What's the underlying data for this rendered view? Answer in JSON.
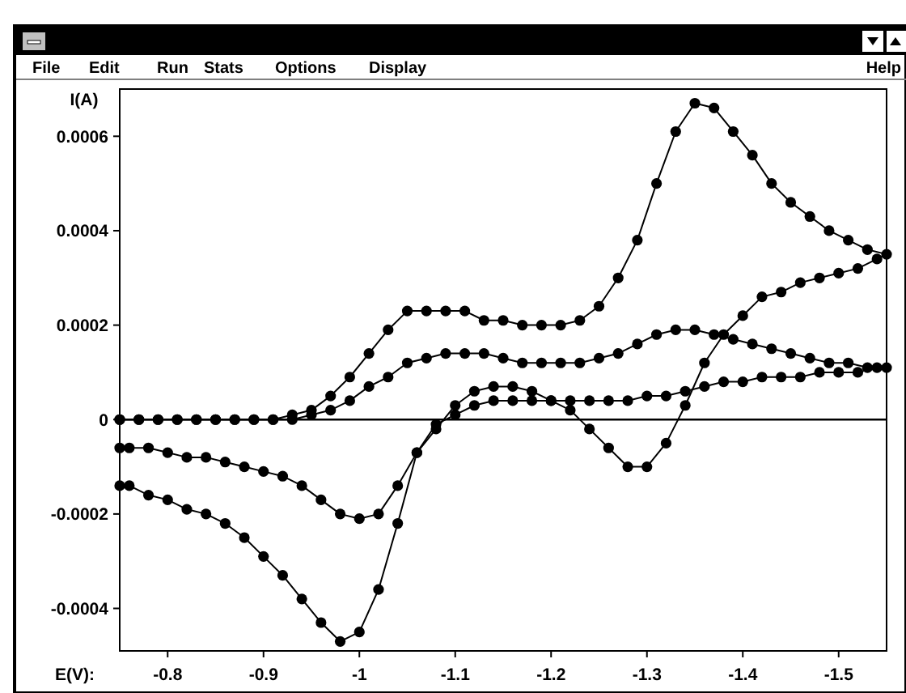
{
  "chart_data": {
    "type": "line",
    "xlabel": "E(V):",
    "ylabel": "I(A)",
    "annotations": [
      "File",
      "Edit",
      "Run",
      "Stats",
      "Options",
      "Display",
      "Help"
    ],
    "xlim": [
      -0.75,
      -1.55
    ],
    "xticks": [
      -0.8,
      -0.9,
      -1,
      -1.1,
      -1.2,
      -1.3,
      -1.4,
      -1.5
    ],
    "ylim": [
      -0.00049,
      0.0007
    ],
    "yticks": [
      -0.0004,
      -0.0002,
      0,
      0.0002,
      0.0004,
      0.0006
    ],
    "grid": false,
    "marker": "circle",
    "line_style": "solid",
    "ref_lines": [
      {
        "axis": "y",
        "value": 0,
        "color": "#000000"
      }
    ],
    "series": [
      {
        "color": "#000000",
        "x": [
          -0.75,
          -0.77,
          -0.79,
          -0.81,
          -0.83,
          -0.85,
          -0.87,
          -0.89,
          -0.91,
          -0.93,
          -0.95,
          -0.97,
          -0.99,
          -1.01,
          -1.03,
          -1.05,
          -1.07,
          -1.09,
          -1.11,
          -1.13,
          -1.15,
          -1.17,
          -1.19,
          -1.21,
          -1.23,
          -1.25,
          -1.27,
          -1.29,
          -1.31,
          -1.33,
          -1.35,
          -1.37,
          -1.39,
          -1.41,
          -1.43,
          -1.45,
          -1.47,
          -1.49,
          -1.51,
          -1.53,
          -1.55,
          -1.54,
          -1.52,
          -1.5,
          -1.48,
          -1.46,
          -1.44,
          -1.42,
          -1.4,
          -1.38,
          -1.36,
          -1.34,
          -1.32,
          -1.3,
          -1.28,
          -1.26,
          -1.24,
          -1.22,
          -1.2,
          -1.18,
          -1.16,
          -1.14,
          -1.12,
          -1.1,
          -1.08,
          -1.06,
          -1.04,
          -1.02,
          -1,
          -0.98,
          -0.96,
          -0.94,
          -0.92,
          -0.9,
          -0.88,
          -0.86,
          -0.84,
          -0.82,
          -0.8,
          -0.78,
          -0.76,
          -0.75
        ],
        "values": [
          0,
          0,
          0,
          0,
          0,
          0,
          0,
          0,
          0,
          1e-05,
          2e-05,
          5e-05,
          9e-05,
          0.00014,
          0.00019,
          0.00023,
          0.00023,
          0.00023,
          0.00023,
          0.00021,
          0.00021,
          0.0002,
          0.0002,
          0.0002,
          0.00021,
          0.00024,
          0.0003,
          0.00038,
          0.0005,
          0.00061,
          0.00067,
          0.00066,
          0.00061,
          0.00056,
          0.0005,
          0.00046,
          0.00043,
          0.0004,
          0.00038,
          0.00036,
          0.00035,
          0.00034,
          0.00032,
          0.00031,
          0.0003,
          0.00029,
          0.00027,
          0.00026,
          0.00022,
          0.00018,
          0.00012,
          3e-05,
          -5e-05,
          -0.0001,
          -0.0001,
          -6e-05,
          -2e-05,
          2e-05,
          4e-05,
          6e-05,
          7e-05,
          7e-05,
          6e-05,
          3e-05,
          -2e-05,
          -7e-05,
          -0.00022,
          -0.00036,
          -0.00045,
          -0.00047,
          -0.00043,
          -0.00038,
          -0.00033,
          -0.00029,
          -0.00025,
          -0.00022,
          -0.0002,
          -0.00019,
          -0.00017,
          -0.00016,
          -0.00014,
          -0.00014
        ]
      },
      {
        "color": "#000000",
        "x": [
          -0.75,
          -0.77,
          -0.79,
          -0.81,
          -0.83,
          -0.85,
          -0.87,
          -0.89,
          -0.91,
          -0.93,
          -0.95,
          -0.97,
          -0.99,
          -1.01,
          -1.03,
          -1.05,
          -1.07,
          -1.09,
          -1.11,
          -1.13,
          -1.15,
          -1.17,
          -1.19,
          -1.21,
          -1.23,
          -1.25,
          -1.27,
          -1.29,
          -1.31,
          -1.33,
          -1.35,
          -1.37,
          -1.39,
          -1.41,
          -1.43,
          -1.45,
          -1.47,
          -1.49,
          -1.51,
          -1.53,
          -1.55,
          -1.54,
          -1.52,
          -1.5,
          -1.48,
          -1.46,
          -1.44,
          -1.42,
          -1.4,
          -1.38,
          -1.36,
          -1.34,
          -1.32,
          -1.3,
          -1.28,
          -1.26,
          -1.24,
          -1.22,
          -1.2,
          -1.18,
          -1.16,
          -1.14,
          -1.12,
          -1.1,
          -1.08,
          -1.06,
          -1.04,
          -1.02,
          -1,
          -0.98,
          -0.96,
          -0.94,
          -0.92,
          -0.9,
          -0.88,
          -0.86,
          -0.84,
          -0.82,
          -0.8,
          -0.78,
          -0.76,
          -0.75
        ],
        "values": [
          0,
          0,
          0,
          0,
          0,
          0,
          0,
          0,
          0,
          0,
          1e-05,
          2e-05,
          4e-05,
          7e-05,
          9e-05,
          0.00012,
          0.00013,
          0.00014,
          0.00014,
          0.00014,
          0.00013,
          0.00012,
          0.00012,
          0.00012,
          0.00012,
          0.00013,
          0.00014,
          0.00016,
          0.00018,
          0.00019,
          0.00019,
          0.00018,
          0.00017,
          0.00016,
          0.00015,
          0.00014,
          0.00013,
          0.00012,
          0.00012,
          0.00011,
          0.00011,
          0.00011,
          0.0001,
          0.0001,
          0.0001,
          9e-05,
          9e-05,
          9e-05,
          8e-05,
          8e-05,
          7e-05,
          6e-05,
          5e-05,
          5e-05,
          4e-05,
          4e-05,
          4e-05,
          4e-05,
          4e-05,
          4e-05,
          4e-05,
          4e-05,
          3e-05,
          1e-05,
          -1e-05,
          -7e-05,
          -0.00014,
          -0.0002,
          -0.00021,
          -0.0002,
          -0.00017,
          -0.00014,
          -0.00012,
          -0.00011,
          -0.0001,
          -9e-05,
          -8e-05,
          -8e-05,
          -7e-05,
          -6e-05,
          -6e-05,
          -6e-05
        ]
      }
    ]
  }
}
